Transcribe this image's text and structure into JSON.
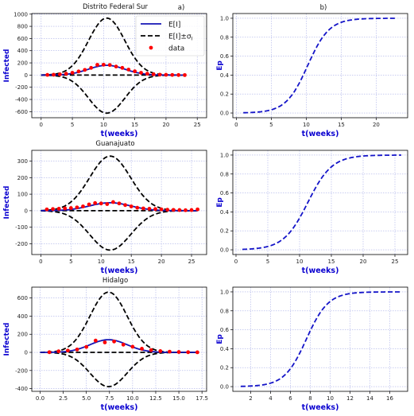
{
  "figure": {
    "panel_label_a": "a)",
    "panel_label_b": "b)"
  },
  "legend": {
    "mean": "E[I]",
    "band": "E[I]±σ",
    "band_sub": "I",
    "data": "data"
  },
  "colors": {
    "mean": "#1414b4",
    "band": "#000000",
    "data": "#ff0000",
    "ep": "#1414c8",
    "grid": "#aab0e8",
    "label": "#0a00d0"
  },
  "chart_data": [
    {
      "type": "line",
      "panel": "a",
      "title": "Distrito Federal Sur",
      "xlabel": "t(weeks)",
      "ylabel": "Infected",
      "xlim": [
        -1.5,
        26.5
      ],
      "ylim": [
        -700,
        1010
      ],
      "xticks": [
        0,
        5,
        10,
        15,
        20,
        25
      ],
      "yticks": [
        -600,
        -400,
        -200,
        0,
        200,
        400,
        600,
        800,
        1000
      ],
      "peak_t": 10.5,
      "width": 2.9,
      "mean_peak": 160,
      "upper_peak": 935,
      "lower_peak": -625,
      "x_range": [
        0,
        23
      ],
      "data_points": [
        [
          1,
          3
        ],
        [
          2,
          6
        ],
        [
          3,
          12
        ],
        [
          4,
          22
        ],
        [
          5,
          38
        ],
        [
          6,
          60
        ],
        [
          7,
          85
        ],
        [
          8,
          118
        ],
        [
          9,
          168
        ],
        [
          10,
          170
        ],
        [
          11,
          165
        ],
        [
          12,
          140
        ],
        [
          13,
          118
        ],
        [
          14,
          90
        ],
        [
          15,
          62
        ],
        [
          16,
          38
        ],
        [
          17,
          22
        ],
        [
          18,
          12
        ],
        [
          19,
          7
        ],
        [
          20,
          4
        ],
        [
          21,
          2
        ],
        [
          22,
          1
        ],
        [
          23,
          0
        ]
      ],
      "grid": true,
      "legend_position": "upper right"
    },
    {
      "type": "line",
      "panel": "b",
      "title": "",
      "xlabel": "t(weeks)",
      "ylabel": "Ep",
      "xlim": [
        -0.5,
        24.5
      ],
      "ylim": [
        -0.05,
        1.05
      ],
      "xticks": [
        0,
        5,
        10,
        15,
        20
      ],
      "yticks": [
        0.0,
        0.2,
        0.4,
        0.6,
        0.8,
        1.0
      ],
      "x_range": [
        1,
        23
      ],
      "midpoint": 10.2,
      "scale": 1.55,
      "grid": true
    },
    {
      "type": "line",
      "panel": "a",
      "title": "Guanajuato",
      "xlabel": "t(weeks)",
      "ylabel": "Infected",
      "xlim": [
        -1.5,
        27.5
      ],
      "ylim": [
        -265,
        365
      ],
      "xticks": [
        0,
        5,
        10,
        15,
        20,
        25
      ],
      "yticks": [
        -200,
        -100,
        0,
        100,
        200,
        300
      ],
      "peak_t": 11.5,
      "width": 3.4,
      "mean_peak": 48,
      "upper_peak": 330,
      "lower_peak": -238,
      "x_range": [
        0,
        26
      ],
      "data_points": [
        [
          1,
          8
        ],
        [
          2,
          10
        ],
        [
          3,
          12
        ],
        [
          4,
          14
        ],
        [
          5,
          16
        ],
        [
          6,
          20
        ],
        [
          7,
          26
        ],
        [
          8,
          38
        ],
        [
          9,
          46
        ],
        [
          10,
          44
        ],
        [
          11,
          40
        ],
        [
          12,
          52
        ],
        [
          13,
          44
        ],
        [
          14,
          34
        ],
        [
          15,
          26
        ],
        [
          16,
          18
        ],
        [
          17,
          14
        ],
        [
          18,
          12
        ],
        [
          19,
          10
        ],
        [
          20,
          8
        ],
        [
          21,
          6
        ],
        [
          22,
          5
        ],
        [
          23,
          4
        ],
        [
          24,
          3
        ],
        [
          25,
          4
        ],
        [
          26,
          8
        ]
      ],
      "grid": true
    },
    {
      "type": "line",
      "panel": "b",
      "title": "",
      "xlabel": "t(weeks)",
      "ylabel": "Ep",
      "xlim": [
        -0.5,
        27
      ],
      "ylim": [
        -0.05,
        1.05
      ],
      "xticks": [
        0,
        5,
        10,
        15,
        20,
        25
      ],
      "yticks": [
        0.0,
        0.2,
        0.4,
        0.6,
        0.8,
        1.0
      ],
      "x_range": [
        1,
        26
      ],
      "midpoint": 11.3,
      "scale": 1.9,
      "grid": true
    },
    {
      "type": "line",
      "panel": "a",
      "title": "Hidalgo",
      "xlabel": "t(weeks)",
      "ylabel": "Infected",
      "xlim": [
        -0.9,
        18.0
      ],
      "ylim": [
        -430,
        720
      ],
      "xticks": [
        0.0,
        2.5,
        5.0,
        7.5,
        10.0,
        12.5,
        15.0,
        17.5
      ],
      "yticks": [
        -400,
        -200,
        0,
        200,
        400,
        600
      ],
      "peak_t": 7.4,
      "width": 2.0,
      "mean_peak": 140,
      "upper_peak": 665,
      "lower_peak": -378,
      "x_range": [
        0,
        17
      ],
      "data_points": [
        [
          1,
          2
        ],
        [
          2,
          12
        ],
        [
          3,
          20
        ],
        [
          4,
          32
        ],
        [
          5,
          60
        ],
        [
          6,
          130
        ],
        [
          7,
          110
        ],
        [
          8,
          120
        ],
        [
          9,
          85
        ],
        [
          10,
          62
        ],
        [
          11,
          40
        ],
        [
          12,
          25
        ],
        [
          13,
          14
        ],
        [
          14,
          8
        ],
        [
          15,
          4
        ],
        [
          16,
          2
        ],
        [
          17,
          1
        ]
      ],
      "grid": true
    },
    {
      "type": "line",
      "panel": "b",
      "title": "",
      "xlabel": "t(weeks)",
      "ylabel": "Ep",
      "xlim": [
        0.2,
        17.8
      ],
      "ylim": [
        -0.05,
        1.05
      ],
      "xticks": [
        2,
        4,
        6,
        8,
        10,
        12,
        14,
        16
      ],
      "yticks": [
        0.0,
        0.2,
        0.4,
        0.6,
        0.8,
        1.0
      ],
      "x_range": [
        1,
        17
      ],
      "midpoint": 7.6,
      "scale": 1.1,
      "grid": true
    }
  ]
}
